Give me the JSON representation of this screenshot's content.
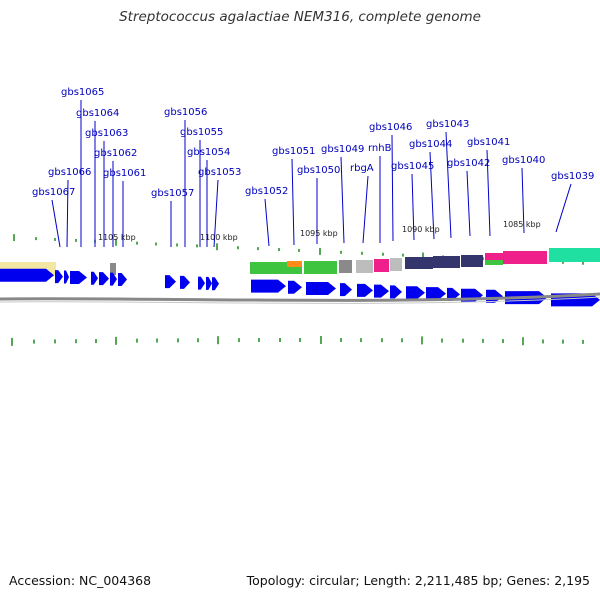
{
  "header": {
    "title": "Streptococcus agalactiae NEM316, complete genome"
  },
  "footer": {
    "accession": "Accession: NC_004368",
    "summary": "Topology: circular; Length: 2,211,485 bp; Genes: 2,195"
  },
  "colors": {
    "gene_label": "#0000bb",
    "label_line": "#0000cc",
    "cds_arrow": "#0000ee",
    "tick": "#1a8a1a",
    "backbone": "#888888",
    "cog_yellow": "#f2e6a2",
    "cog_green": "#3ec43e",
    "cog_orange": "#ff8c1a",
    "cog_gray": "#8a8a8a",
    "cog_pink": "#f0208a",
    "cog_navy": "#35356e",
    "cog_silver": "#bdbdbd",
    "cog_teal": "#1fe0a0"
  },
  "scale_labels": [
    "1105 kbp",
    "1100 kbp",
    "1095 kbp",
    "1090 kbp",
    "1085 kbp"
  ],
  "genes": [
    "gbs1067",
    "gbs1066",
    "gbs1065",
    "gbs1064",
    "gbs1063",
    "gbs1062",
    "gbs1061",
    "gbs1057",
    "gbs1056",
    "gbs1055",
    "gbs1054",
    "gbs1053",
    "gbs1052",
    "gbs1051",
    "gbs1050",
    "gbs1049",
    "rbgA",
    "rnhB",
    "gbs1046",
    "gbs1045",
    "gbs1044",
    "gbs1043",
    "gbs1042",
    "gbs1041",
    "gbs1040",
    "gbs1039"
  ]
}
